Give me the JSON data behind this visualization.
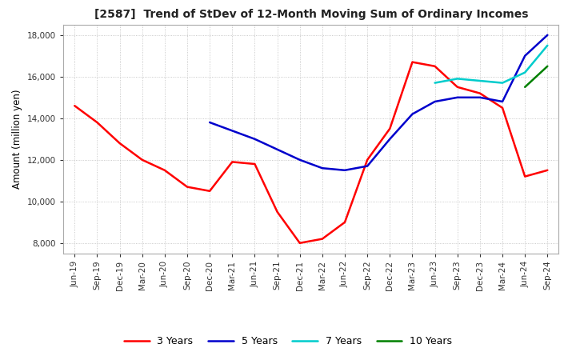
{
  "title": "[2587]  Trend of StDev of 12-Month Moving Sum of Ordinary Incomes",
  "ylabel": "Amount (million yen)",
  "ylim": [
    7500,
    18500
  ],
  "yticks": [
    8000,
    10000,
    12000,
    14000,
    16000,
    18000
  ],
  "background_color": "#ffffff",
  "grid_color": "#bbbbbb",
  "legend_labels": [
    "3 Years",
    "5 Years",
    "7 Years",
    "10 Years"
  ],
  "legend_colors": [
    "#ff0000",
    "#0000cc",
    "#00cccc",
    "#008000"
  ],
  "x_labels": [
    "Jun-19",
    "Sep-19",
    "Dec-19",
    "Mar-20",
    "Jun-20",
    "Sep-20",
    "Dec-20",
    "Mar-21",
    "Jun-21",
    "Sep-21",
    "Dec-21",
    "Mar-22",
    "Jun-22",
    "Sep-22",
    "Dec-22",
    "Mar-23",
    "Jun-23",
    "Sep-23",
    "Dec-23",
    "Mar-24",
    "Jun-24",
    "Sep-24"
  ],
  "series_3y": [
    14600,
    13800,
    12800,
    12000,
    11500,
    10700,
    10500,
    11900,
    11800,
    9500,
    8000,
    8200,
    9000,
    12000,
    13500,
    16700,
    16500,
    15500,
    15200,
    14500,
    11200,
    11500
  ],
  "series_5y": [
    null,
    null,
    null,
    null,
    null,
    null,
    13800,
    13400,
    13000,
    12500,
    12000,
    11600,
    11500,
    11700,
    13000,
    14200,
    14800,
    15000,
    15000,
    14800,
    17000,
    18000
  ],
  "series_7y": [
    null,
    null,
    null,
    null,
    null,
    null,
    null,
    null,
    null,
    null,
    null,
    null,
    null,
    null,
    null,
    null,
    15700,
    15900,
    15800,
    15700,
    16200,
    17500
  ],
  "series_10y": [
    null,
    null,
    null,
    null,
    null,
    null,
    null,
    null,
    null,
    null,
    null,
    null,
    null,
    null,
    null,
    null,
    null,
    null,
    null,
    null,
    15500,
    16500
  ]
}
